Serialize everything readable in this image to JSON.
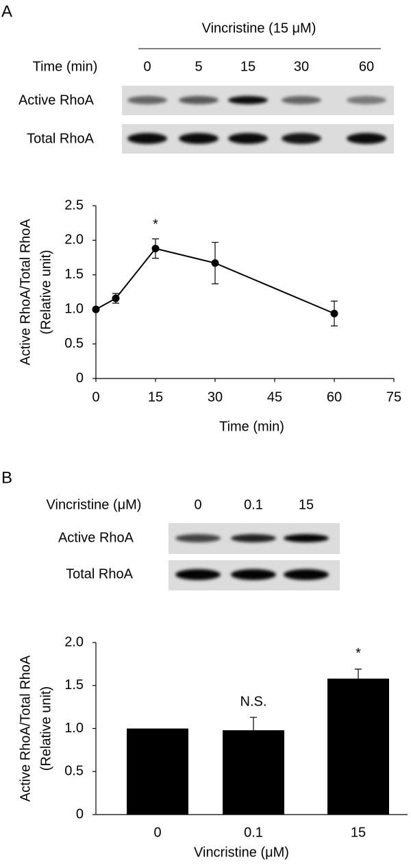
{
  "panels": [
    {
      "label": "A",
      "treatment": "Vincristine (15 μM)",
      "lane_header": "Time (min)",
      "lanes": [
        "0",
        "5",
        "15",
        "30",
        "60"
      ],
      "rows": [
        "Active RhoA",
        "Total RhoA"
      ]
    },
    {
      "label": "B",
      "treatment": null,
      "lane_header": "Vincristine (μM)",
      "lanes": [
        "0",
        "0.1",
        "15"
      ],
      "rows": [
        "Active RhoA",
        "Total RhoA"
      ]
    }
  ],
  "chart_data": [
    {
      "type": "line",
      "color": "#000000",
      "x": [
        0,
        5,
        15,
        30,
        60
      ],
      "values": [
        1.0,
        1.16,
        1.88,
        1.67,
        0.94
      ],
      "errors": [
        0,
        0.07,
        0.14,
        0.3,
        0.18
      ],
      "annotations": [
        null,
        null,
        "*",
        null,
        null
      ],
      "xlim": [
        0,
        75
      ],
      "xticks": [
        0,
        15,
        30,
        45,
        60,
        75
      ],
      "ylim": [
        0,
        2.5
      ],
      "yticks": [
        0,
        0.5,
        {
          "value": 1,
          "label": "1.0"
        },
        1.5,
        {
          "value": 2,
          "label": "2.0"
        },
        2.5
      ],
      "xlabel": "Time (min)",
      "ylabel": [
        "Active RhoA/Total RhoA",
        "(Relative unit)"
      ]
    },
    {
      "type": "bar",
      "color": "#000000",
      "categories": [
        "0",
        "0.1",
        "15"
      ],
      "values": [
        1.0,
        0.98,
        1.58
      ],
      "errors": [
        0,
        0.15,
        0.11
      ],
      "annotations": [
        null,
        "N.S.",
        "*"
      ],
      "ylim": [
        0,
        2
      ],
      "yticks": [
        0,
        0.5,
        {
          "value": 1,
          "label": "1.0"
        },
        1.5,
        {
          "value": 2,
          "label": "2.0"
        }
      ],
      "xlabel": "Vincristine (μM)",
      "ylabel": [
        "Active RhoA/Total RhoA",
        "(Relative unit)"
      ]
    }
  ]
}
